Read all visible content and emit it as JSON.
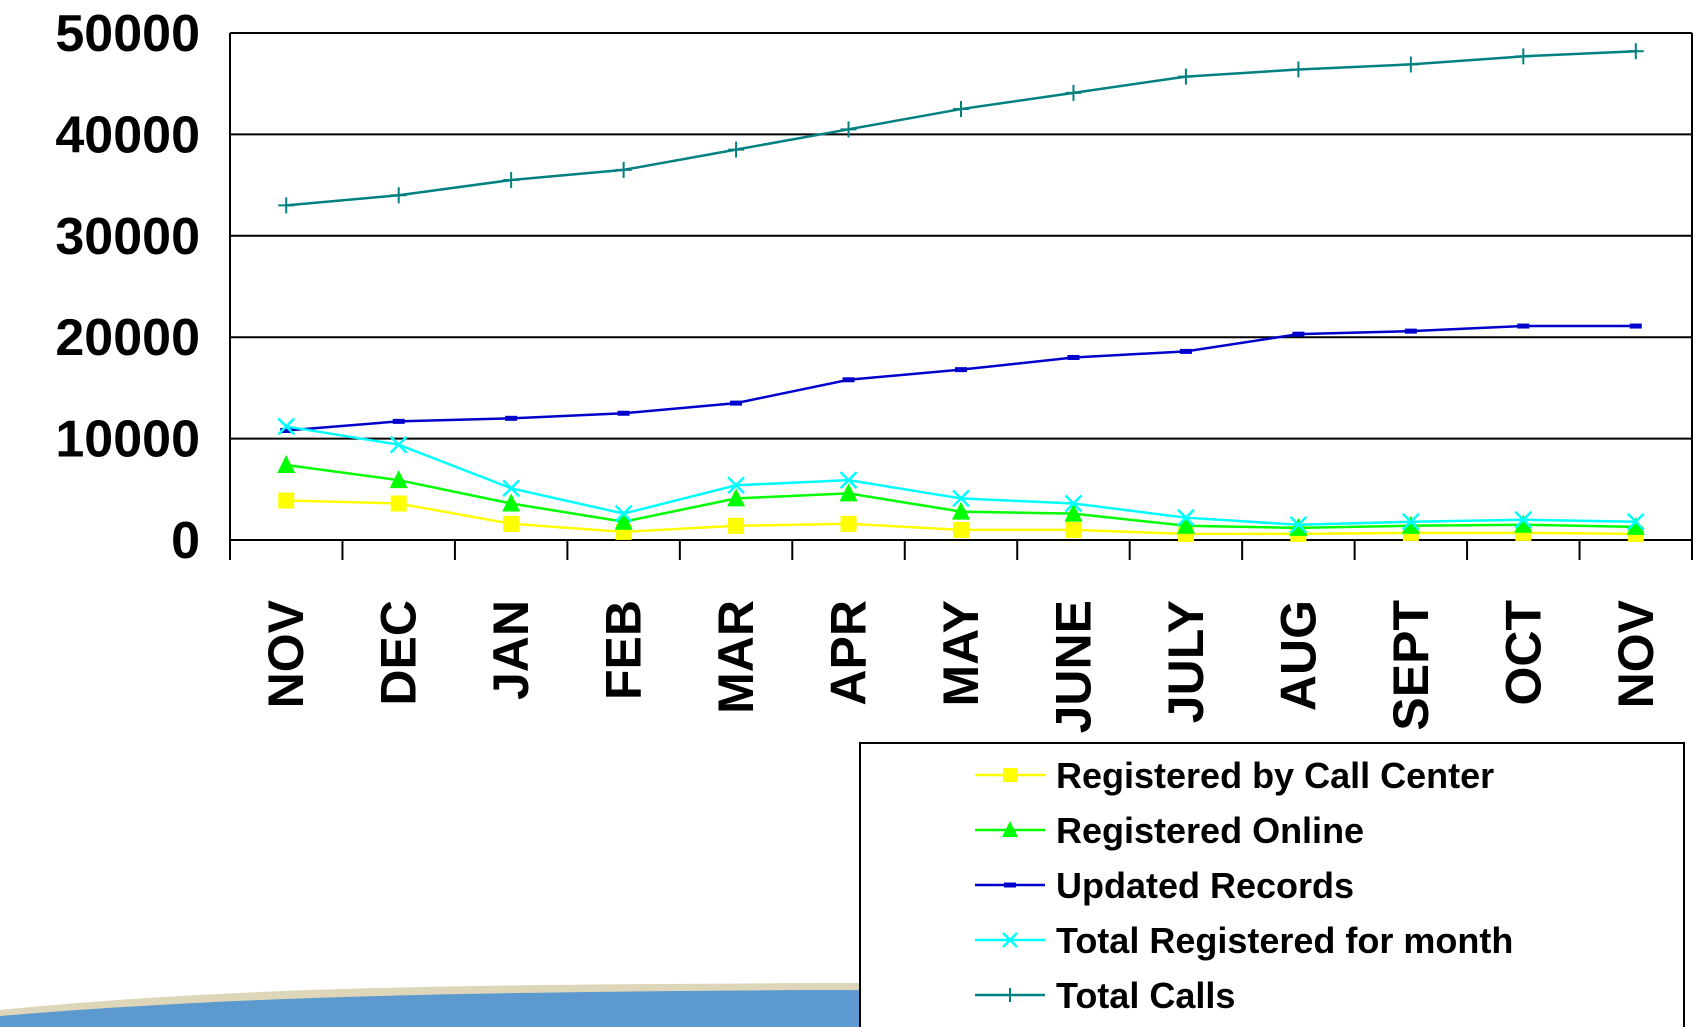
{
  "chart_data": {
    "type": "line",
    "categories": [
      "NOV",
      "DEC",
      "JAN",
      "FEB",
      "MAR",
      "APR",
      "MAY",
      "JUNE",
      "JULY",
      "AUG",
      "SEPT",
      "OCT",
      "NOV"
    ],
    "ylim": [
      0,
      50000
    ],
    "yticks": [
      "0",
      "10000",
      "20000",
      "30000",
      "40000",
      "50000"
    ],
    "grid": true,
    "legend_position": "bottom-right",
    "series": [
      {
        "name": "Registered by Call Center",
        "color": "#FFFF00",
        "marker": "square",
        "values": [
          3900,
          3600,
          1600,
          800,
          1400,
          1600,
          1000,
          1000,
          600,
          600,
          700,
          700,
          600
        ]
      },
      {
        "name": "Registered Online",
        "color": "#00FF00",
        "marker": "triangle",
        "values": [
          7400,
          5900,
          3600,
          1800,
          4100,
          4600,
          2800,
          2600,
          1400,
          1200,
          1400,
          1500,
          1300
        ]
      },
      {
        "name": "Updated Records",
        "color": "#0000CC",
        "marker": "dash",
        "values": [
          10800,
          11700,
          12000,
          12500,
          13500,
          15800,
          16800,
          18000,
          18600,
          20300,
          20600,
          21100,
          21100
        ]
      },
      {
        "name": "Total Registered for month",
        "color": "#00FFFF",
        "marker": "x",
        "values": [
          11200,
          9400,
          5100,
          2600,
          5400,
          5900,
          4100,
          3600,
          2200,
          1500,
          1800,
          2000,
          1800
        ]
      },
      {
        "name": "Total Calls",
        "color": "#008080",
        "marker": "plus",
        "values": [
          33000,
          34000,
          35500,
          36500,
          38500,
          40500,
          42500,
          44100,
          45700,
          46400,
          46900,
          47700,
          48200
        ]
      }
    ]
  }
}
